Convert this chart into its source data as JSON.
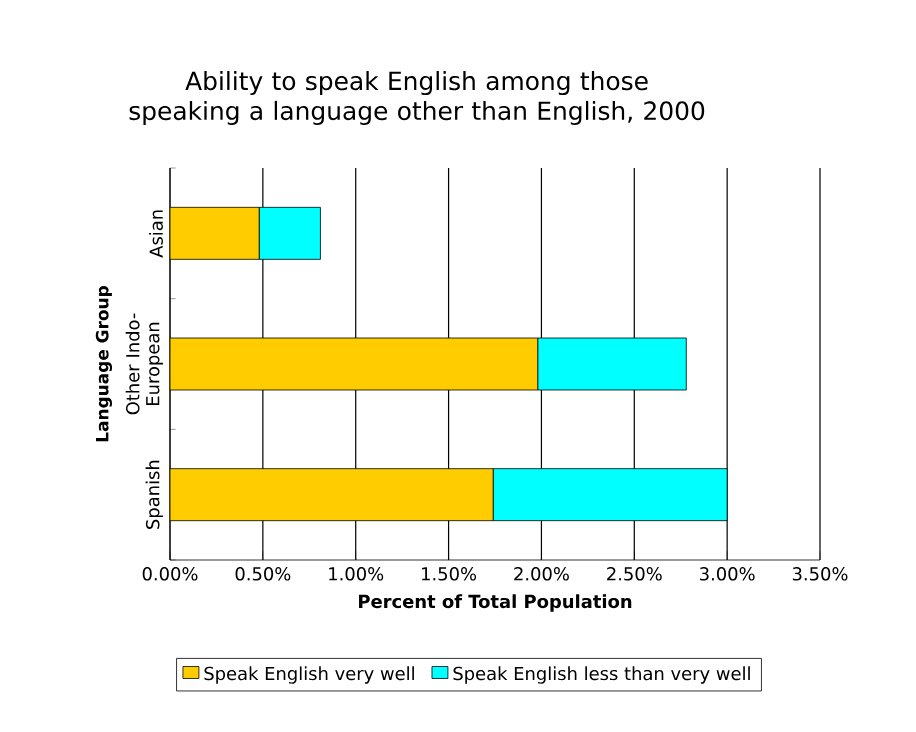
{
  "chart_data": {
    "type": "bar",
    "orientation": "horizontal",
    "stacked": true,
    "title": "Ability to speak English among those speaking a language other than English, 2000",
    "xlabel": "Percent of Total Population",
    "ylabel": "Language Group",
    "categories": [
      "Asian",
      "Other Indo-European",
      "Spanish"
    ],
    "series": [
      {
        "name": "Speak English very well",
        "color": "#ffcc00",
        "values": [
          0.48,
          1.98,
          1.74
        ]
      },
      {
        "name": "Speak English less than very well",
        "color": "#00ffff",
        "values": [
          0.33,
          0.8,
          1.26
        ]
      }
    ],
    "xlim": [
      0,
      3.5
    ],
    "xticks": [
      {
        "value": 0,
        "label": "0.00%"
      },
      {
        "value": 0.5,
        "label": "0.50%"
      },
      {
        "value": 1,
        "label": "1.00%"
      },
      {
        "value": 1.5,
        "label": "1.50%"
      },
      {
        "value": 2,
        "label": "2.00%"
      },
      {
        "value": 2.5,
        "label": "2.50%"
      },
      {
        "value": 3,
        "label": "3.00%"
      },
      {
        "value": 3.5,
        "label": "3.50%"
      }
    ],
    "grid": "x",
    "legend": "bottom"
  }
}
